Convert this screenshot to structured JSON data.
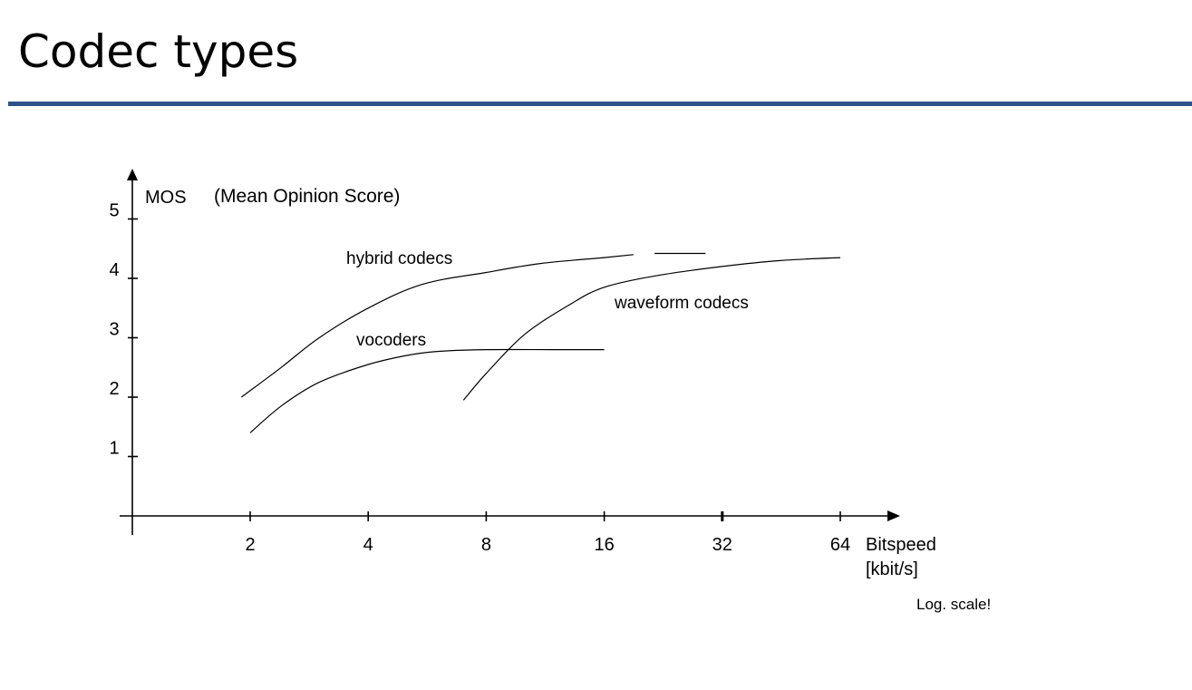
{
  "slide": {
    "title": "Codec types",
    "rule_color": "#2d5288"
  },
  "chart_data": {
    "type": "line",
    "title": "",
    "ylabel": "MOS",
    "ylabel_note": "(Mean Opinion Score)",
    "xlabel_line1": "Bitspeed",
    "xlabel_line2": "[kbit/s]",
    "note": "Log. scale!",
    "x_scale": "log2",
    "x_ticks": [
      {
        "value": 2,
        "label": "2"
      },
      {
        "value": 4,
        "label": "4"
      },
      {
        "value": 8,
        "label": "8"
      },
      {
        "value": 16,
        "label": "16"
      },
      {
        "value": 32,
        "label": "32"
      },
      {
        "value": 64,
        "label": "64"
      }
    ],
    "y_ticks": [
      {
        "value": 1,
        "label": "1"
      },
      {
        "value": 2,
        "label": "2"
      },
      {
        "value": 3,
        "label": "3"
      },
      {
        "value": 4,
        "label": "4"
      },
      {
        "value": 5,
        "label": "5"
      }
    ],
    "xlim": [
      1,
      90
    ],
    "ylim": [
      0,
      5.5
    ],
    "grid": false,
    "series": [
      {
        "name": "hybrid codecs",
        "points": [
          [
            1.9,
            2.0
          ],
          [
            2.4,
            2.5
          ],
          [
            3.0,
            3.0
          ],
          [
            4.0,
            3.5
          ],
          [
            5.5,
            3.9
          ],
          [
            8.0,
            4.1
          ],
          [
            11.0,
            4.25
          ],
          [
            16.0,
            4.35
          ],
          [
            19.0,
            4.4
          ]
        ],
        "dashed_tail": [
          [
            21.5,
            4.42
          ],
          [
            29.0,
            4.42
          ]
        ]
      },
      {
        "name": "vocoders",
        "points": [
          [
            2.0,
            1.4
          ],
          [
            2.4,
            1.85
          ],
          [
            3.0,
            2.25
          ],
          [
            4.0,
            2.55
          ],
          [
            5.0,
            2.7
          ],
          [
            6.0,
            2.77
          ],
          [
            8.0,
            2.8
          ],
          [
            12.0,
            2.8
          ],
          [
            16.0,
            2.8
          ]
        ]
      },
      {
        "name": "waveform codecs",
        "points": [
          [
            7.0,
            1.95
          ],
          [
            8.0,
            2.4
          ],
          [
            10.0,
            3.05
          ],
          [
            13.0,
            3.55
          ],
          [
            16.0,
            3.85
          ],
          [
            22.0,
            4.05
          ],
          [
            32.0,
            4.2
          ],
          [
            45.0,
            4.3
          ],
          [
            64.0,
            4.35
          ]
        ]
      }
    ]
  }
}
